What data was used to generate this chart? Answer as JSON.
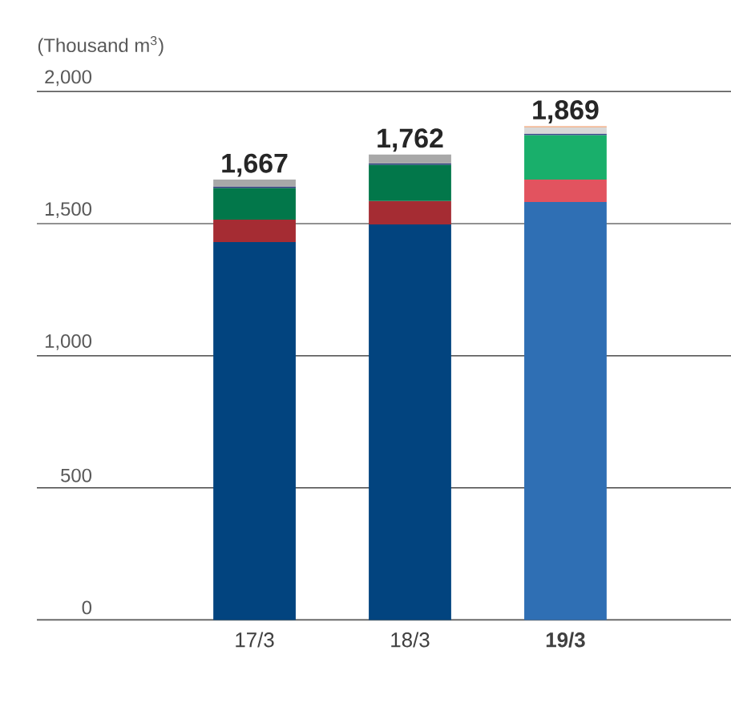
{
  "chart_data": {
    "type": "bar",
    "stacked": true,
    "ylabel": "(Thousand m$^{3}$)",
    "categories": [
      "17/3",
      "18/3",
      "19/3"
    ],
    "series": [
      {
        "colors": [
          "#02447f",
          "#02447f",
          "#2f6fb4"
        ],
        "values": [
          1430,
          1497,
          1582
        ]
      },
      {
        "colors": [
          "#a52c33",
          "#a52c33",
          "#e2535f"
        ],
        "values": [
          85,
          89,
          85
        ]
      },
      {
        "colors": [
          "#02774a",
          "#02774a",
          "#19af6b"
        ],
        "values": [
          120,
          137,
          168
        ]
      },
      {
        "colors": [
          "#2b3a7a",
          "#2b3a7a",
          "#3b4a8a"
        ],
        "values": [
          5,
          5,
          5
        ]
      },
      {
        "colors": [
          "#a8a8a8",
          "#a8a8a8",
          "#d8d8d8"
        ],
        "values": [
          27,
          34,
          25
        ]
      },
      {
        "colors": [
          "#f0a070",
          "#f0a070",
          "#f0a070"
        ],
        "values": [
          0,
          0,
          4
        ]
      }
    ],
    "totals": [
      "1,667",
      "1,762",
      "1,869"
    ],
    "ylim": [
      0,
      2000
    ],
    "yticks": [
      0,
      500,
      {
        "value": 1000,
        "label": "1,000"
      },
      {
        "value": 1500,
        "label": "1,500"
      },
      {
        "value": 2000,
        "label": "2,000"
      }
    ],
    "grid": "y"
  }
}
